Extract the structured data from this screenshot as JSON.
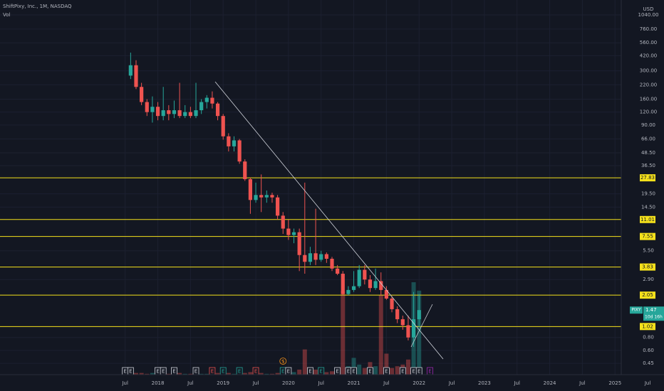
{
  "chart_data": {
    "type": "candlestick",
    "title": "ShiftPixy, Inc., 1M, NASDAQ",
    "volume_label": "Vol",
    "currency": "USD",
    "log_scale": true,
    "up_color": "#26a69a",
    "down_color": "#ef5350",
    "level_color": "#f5e11b",
    "x": [
      "2017-08",
      "2017-09",
      "2017-10",
      "2017-11",
      "2017-12",
      "2018-01",
      "2018-02",
      "2018-03",
      "2018-04",
      "2018-05",
      "2018-06",
      "2018-07",
      "2018-08",
      "2018-09",
      "2018-10",
      "2018-11",
      "2018-12",
      "2019-01",
      "2019-02",
      "2019-03",
      "2019-04",
      "2019-05",
      "2019-06",
      "2019-07",
      "2019-08",
      "2019-09",
      "2019-10",
      "2019-11",
      "2019-12",
      "2020-01",
      "2020-02",
      "2020-03",
      "2020-04",
      "2020-05",
      "2020-06",
      "2020-07",
      "2020-08",
      "2020-09",
      "2020-10",
      "2020-11",
      "2020-12",
      "2021-01",
      "2021-02",
      "2021-03",
      "2021-04",
      "2021-05",
      "2021-06",
      "2021-07",
      "2021-08",
      "2021-09",
      "2021-10",
      "2021-11",
      "2021-12",
      "2022-01"
    ],
    "open": [
      270,
      340,
      210,
      150,
      120,
      135,
      110,
      125,
      115,
      125,
      110,
      120,
      110,
      125,
      150,
      165,
      145,
      110,
      70,
      56,
      64,
      40,
      27,
      17,
      19,
      18,
      19,
      18,
      12,
      9,
      7.8,
      8.3,
      5,
      4.3,
      5.2,
      4.5,
      5.1,
      4.6,
      3.7,
      3.3,
      2.1,
      2.3,
      2.5,
      3.6,
      2.9,
      2.4,
      2.8,
      2.3,
      1.9,
      1.5,
      1.2,
      1.05,
      0.8,
      1.2
    ],
    "high": [
      450,
      380,
      230,
      160,
      170,
      150,
      210,
      140,
      155,
      230,
      140,
      135,
      230,
      160,
      175,
      190,
      150,
      115,
      75,
      70,
      66,
      42,
      28,
      25,
      30,
      21,
      20,
      19,
      13,
      11,
      9,
      9,
      25,
      6,
      14,
      5.5,
      5.3,
      4.8,
      4,
      3.5,
      2.5,
      3.5,
      4,
      4,
      3.2,
      3.7,
      3.4,
      2.5,
      2,
      1.6,
      1.3,
      1.3,
      2.2,
      2.1
    ],
    "low": [
      250,
      200,
      140,
      110,
      95,
      100,
      100,
      100,
      105,
      105,
      105,
      105,
      105,
      115,
      130,
      130,
      100,
      65,
      50,
      50,
      38,
      26,
      12.5,
      16,
      13,
      16,
      16,
      11,
      8,
      7,
      6.5,
      3.5,
      3.3,
      4,
      4,
      4.3,
      4.2,
      3.5,
      3.2,
      2.05,
      2.05,
      2.2,
      2.4,
      2.6,
      2.2,
      2.3,
      2.05,
      1.85,
      1.4,
      1.1,
      0.95,
      0.75,
      0.65,
      1.0
    ],
    "close": [
      340,
      210,
      150,
      120,
      135,
      110,
      125,
      115,
      125,
      110,
      120,
      110,
      125,
      150,
      165,
      145,
      110,
      70,
      56,
      64,
      40,
      27,
      17,
      19,
      18,
      19,
      18,
      12,
      9,
      7.8,
      8.3,
      5,
      4.3,
      5.2,
      4.5,
      5.1,
      4.6,
      3.7,
      3.3,
      2.1,
      2.3,
      2.5,
      3.6,
      2.9,
      2.4,
      2.8,
      2.3,
      1.9,
      1.5,
      1.2,
      1.05,
      0.8,
      1.2,
      1.47
    ],
    "volume": [
      3,
      2,
      2,
      1,
      2,
      1,
      2,
      1,
      1,
      2,
      1,
      1,
      2,
      1,
      1,
      1,
      2,
      2,
      2,
      1,
      2,
      2,
      3,
      2,
      2,
      1,
      1,
      2,
      3,
      4,
      3,
      6,
      30,
      8,
      6,
      4,
      3,
      4,
      5,
      100,
      10,
      20,
      12,
      8,
      15,
      10,
      95,
      25,
      8,
      10,
      12,
      18,
      110,
      100
    ],
    "xlim": [
      "2015-08",
      "2025-10"
    ],
    "xticks": [
      {
        "value": "2017-07",
        "label": "Jul"
      },
      {
        "value": "2018-01",
        "label": "2018"
      },
      {
        "value": "2018-07",
        "label": "Jul"
      },
      {
        "value": "2019-01",
        "label": "2019"
      },
      {
        "value": "2019-07",
        "label": "Jul"
      },
      {
        "value": "2020-01",
        "label": "2020"
      },
      {
        "value": "2020-07",
        "label": "Jul"
      },
      {
        "value": "2021-01",
        "label": "2021"
      },
      {
        "value": "2021-07",
        "label": "Jul"
      },
      {
        "value": "2022-01",
        "label": "2022"
      },
      {
        "value": "2022-07",
        "label": "Jul"
      },
      {
        "value": "2023-01",
        "label": "2023"
      },
      {
        "value": "2023-07",
        "label": "Jul"
      },
      {
        "value": "2024-01",
        "label": "2024"
      },
      {
        "value": "2024-07",
        "label": "Jul"
      },
      {
        "value": "2025-01",
        "label": "2025"
      },
      {
        "value": "2025-07",
        "label": "Jul"
      }
    ],
    "ylim": [
      0.35,
      1450
    ],
    "yticks": [
      {
        "value": 1040,
        "label": "1040.00"
      },
      {
        "value": 760,
        "label": "760.00"
      },
      {
        "value": 560,
        "label": "560.00"
      },
      {
        "value": 420,
        "label": "420.00"
      },
      {
        "value": 300,
        "label": "300.00"
      },
      {
        "value": 220,
        "label": "220.00"
      },
      {
        "value": 160,
        "label": "160.00"
      },
      {
        "value": 120,
        "label": "120.00"
      },
      {
        "value": 90,
        "label": "90.00"
      },
      {
        "value": 66,
        "label": "66.00"
      },
      {
        "value": 48.5,
        "label": "48.50"
      },
      {
        "value": 36.5,
        "label": "36.50"
      },
      {
        "value": 19.5,
        "label": "19.50"
      },
      {
        "value": 14.5,
        "label": "14.50"
      },
      {
        "value": 5.5,
        "label": "5.50"
      },
      {
        "value": 2.9,
        "label": "2.90"
      },
      {
        "value": 0.8,
        "label": "0.80"
      },
      {
        "value": 0.6,
        "label": "0.60"
      },
      {
        "value": 0.45,
        "label": "0.45"
      }
    ],
    "levels": [
      27.83,
      11.01,
      7.55,
      3.83,
      2.05,
      1.02
    ],
    "price_tag": {
      "symbol": "PIXY",
      "value": 1.47,
      "countdown": "10d 16h"
    },
    "events": [
      {
        "date": "2017-07",
        "label": "E",
        "color": "#d1d4dc"
      },
      {
        "date": "2017-08",
        "label": "E",
        "color": "#d1d4dc"
      },
      {
        "date": "2018-01",
        "label": "E",
        "color": "#d1d4dc"
      },
      {
        "date": "2018-02",
        "label": "E",
        "color": "#d1d4dc"
      },
      {
        "date": "2018-04",
        "label": "E",
        "color": "#d1d4dc"
      },
      {
        "date": "2018-08",
        "label": "E",
        "color": "#d1d4dc"
      },
      {
        "date": "2018-11",
        "label": "E",
        "color": "#ef5350"
      },
      {
        "date": "2019-01",
        "label": "E",
        "color": "#26a69a"
      },
      {
        "date": "2019-04",
        "label": "E",
        "color": "#26a69a"
      },
      {
        "date": "2019-07",
        "label": "E",
        "color": "#ef5350"
      },
      {
        "date": "2019-12",
        "label": "E",
        "color": "#26a69a"
      },
      {
        "date": "2020-01",
        "label": "E",
        "color": "#d1d4dc"
      },
      {
        "date": "2020-05",
        "label": "E",
        "color": "#d1d4dc"
      },
      {
        "date": "2020-07",
        "label": "E",
        "color": "#26a69a"
      },
      {
        "date": "2020-10",
        "label": "E",
        "color": "#d1d4dc"
      },
      {
        "date": "2020-12",
        "label": "E",
        "color": "#d1d4dc"
      },
      {
        "date": "2021-01",
        "label": "E",
        "color": "#d1d4dc"
      },
      {
        "date": "2021-04",
        "label": "E",
        "color": "#d1d4dc"
      },
      {
        "date": "2021-07",
        "label": "E",
        "color": "#d1d4dc"
      },
      {
        "date": "2021-10",
        "label": "E",
        "color": "#d1d4dc"
      },
      {
        "date": "2021-12",
        "label": "E",
        "color": "#d1d4dc"
      },
      {
        "date": "2022-01",
        "label": "E",
        "color": "#d1d4dc"
      },
      {
        "date": "2022-03",
        "label": "E",
        "color": "#9c27b0"
      }
    ],
    "dividends": [
      {
        "date": "2019-12",
        "label": "$",
        "color": "#f7931a"
      }
    ]
  }
}
